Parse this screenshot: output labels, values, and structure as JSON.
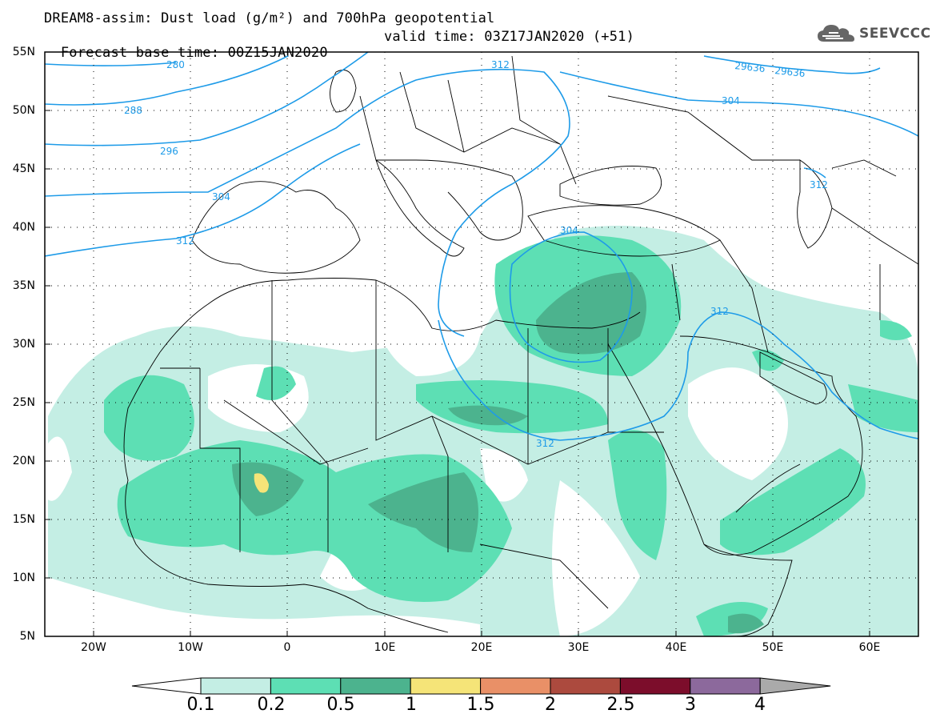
{
  "header": {
    "title_line1": "DREAM8-assim: Dust load (g/m²) and 700hPa geopotential",
    "title_line2_base": "Forecast base time: 00Z15JAN2020",
    "title_line2_valid": "valid time: 03Z17JAN2020 (+51)"
  },
  "logo": {
    "text": "SEEVCCC",
    "icon": "cloud-icon"
  },
  "map": {
    "lat_ticks": [
      "55N",
      "50N",
      "45N",
      "40N",
      "35N",
      "30N",
      "25N",
      "20N",
      "15N",
      "10N",
      "5N"
    ],
    "lon_ticks": [
      "20W",
      "10W",
      "0",
      "10E",
      "20E",
      "30E",
      "40E",
      "50E",
      "60E"
    ],
    "contour_labels": [
      "280",
      "288",
      "296",
      "304",
      "312",
      "312",
      "304",
      "312",
      "312",
      "304",
      "29636",
      "29636",
      "312"
    ],
    "colors": {
      "land_border": "#000000",
      "contour": "#1e9be8",
      "grid": "#000000"
    }
  },
  "legend": {
    "levels": [
      "0.1",
      "0.2",
      "0.5",
      "1",
      "1.5",
      "2",
      "2.5",
      "3",
      "4"
    ],
    "colors": [
      "#ffffff",
      "#c4eee4",
      "#5ddfb4",
      "#4cb38e",
      "#f5e478",
      "#e99067",
      "#ac4a3e",
      "#7c0d2b",
      "#8c699c",
      "#aaaaaa"
    ]
  }
}
